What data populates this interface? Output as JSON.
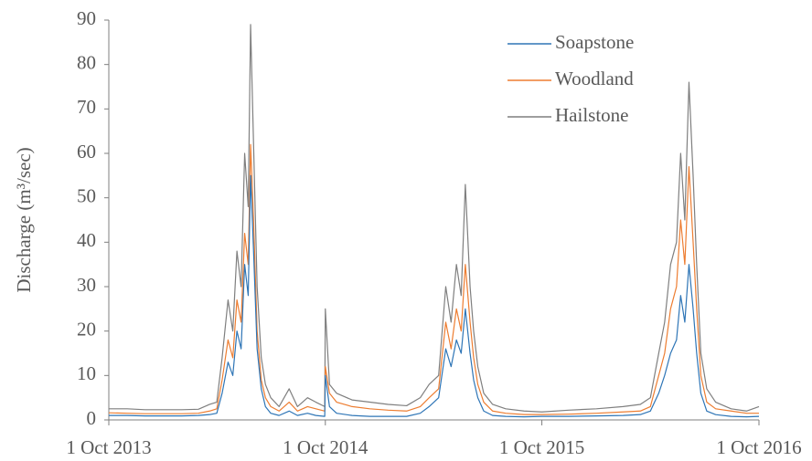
{
  "chart_data": {
    "type": "line",
    "y_label": "Discharge (m³/sec)",
    "x": [
      "2013-10-01",
      "2013-11-01",
      "2013-12-01",
      "2014-01-01",
      "2014-02-01",
      "2014-03-01",
      "2014-03-20",
      "2014-04-01",
      "2014-04-10",
      "2014-04-20",
      "2014-04-28",
      "2014-05-05",
      "2014-05-12",
      "2014-05-18",
      "2014-05-24",
      "2014-05-28",
      "2014-06-02",
      "2014-06-08",
      "2014-06-15",
      "2014-06-22",
      "2014-07-01",
      "2014-07-15",
      "2014-08-01",
      "2014-08-15",
      "2014-09-01",
      "2014-09-15",
      "2014-09-30",
      "2014-10-01",
      "2014-10-08",
      "2014-10-20",
      "2014-11-15",
      "2014-12-15",
      "2015-01-15",
      "2015-02-15",
      "2015-03-10",
      "2015-03-25",
      "2015-04-10",
      "2015-04-22",
      "2015-05-01",
      "2015-05-10",
      "2015-05-18",
      "2015-05-25",
      "2015-06-02",
      "2015-06-08",
      "2015-06-15",
      "2015-06-25",
      "2015-07-10",
      "2015-08-01",
      "2015-09-01",
      "2015-10-01",
      "2015-11-15",
      "2016-01-01",
      "2016-02-15",
      "2016-03-15",
      "2016-04-01",
      "2016-04-15",
      "2016-04-25",
      "2016-05-05",
      "2016-05-15",
      "2016-05-22",
      "2016-05-29",
      "2016-06-05",
      "2016-06-12",
      "2016-06-18",
      "2016-06-25",
      "2016-07-05",
      "2016-07-20",
      "2016-08-15",
      "2016-09-10",
      "2016-10-01"
    ],
    "series": [
      {
        "name": "Soapstone",
        "color": "#2e75b6",
        "values": [
          1,
          1,
          0.9,
          0.9,
          0.9,
          1,
          1.2,
          1.5,
          6,
          13,
          10,
          20,
          16,
          35,
          28,
          55,
          38,
          16,
          7,
          3,
          1.5,
          1,
          2,
          1,
          1.5,
          1,
          0.8,
          10,
          3,
          1.5,
          1,
          0.8,
          0.8,
          0.8,
          1.5,
          3,
          5,
          16,
          12,
          18,
          15,
          25,
          15,
          9,
          5,
          2,
          1,
          0.8,
          0.7,
          0.8,
          0.8,
          0.9,
          1,
          1.2,
          2,
          6,
          10,
          15,
          18,
          28,
          22,
          35,
          25,
          15,
          6,
          2,
          1.2,
          0.8,
          0.7,
          0.8
        ]
      },
      {
        "name": "Woodland",
        "color": "#ed7d31",
        "values": [
          1.6,
          1.5,
          1.4,
          1.4,
          1.4,
          1.5,
          2,
          2.5,
          9,
          18,
          14,
          27,
          22,
          42,
          35,
          62,
          45,
          20,
          9,
          5,
          3,
          2,
          4,
          2,
          3,
          2.5,
          2,
          12,
          6,
          4,
          3,
          2.5,
          2.2,
          2,
          3,
          5,
          7,
          22,
          16,
          25,
          20,
          35,
          22,
          14,
          8,
          4,
          2,
          1.5,
          1.2,
          1.2,
          1.3,
          1.5,
          1.8,
          2,
          3,
          10,
          15,
          25,
          30,
          45,
          35,
          57,
          40,
          25,
          10,
          4,
          2.5,
          2,
          1.5,
          1.5
        ]
      },
      {
        "name": "Hailstone",
        "color": "#7f7f7f",
        "values": [
          2.5,
          2.5,
          2.3,
          2.3,
          2.3,
          2.4,
          3.5,
          4,
          14,
          27,
          20,
          38,
          30,
          60,
          48,
          89,
          62,
          30,
          14,
          8,
          5,
          3,
          7,
          3,
          5,
          4,
          3,
          25,
          8,
          6,
          4.5,
          4,
          3.5,
          3.2,
          5,
          8,
          10,
          30,
          22,
          35,
          28,
          53,
          30,
          20,
          12,
          6,
          3.5,
          2.5,
          2,
          1.8,
          2.2,
          2.5,
          3,
          3.5,
          5,
          15,
          22,
          35,
          40,
          60,
          45,
          76,
          55,
          35,
          15,
          7,
          4,
          2.5,
          2,
          3
        ]
      }
    ],
    "xlim": [
      "2013-10-01",
      "2016-10-01"
    ],
    "xticks": [
      {
        "value": "2013-10-01",
        "label": "1 Oct 2013"
      },
      {
        "value": "2014-10-01",
        "label": "1 Oct 2014"
      },
      {
        "value": "2015-10-01",
        "label": "1 Oct 2015"
      },
      {
        "value": "2016-10-01",
        "label": "1 Oct 2016"
      }
    ],
    "ylim": [
      0,
      90
    ],
    "yticks": [
      0,
      10,
      20,
      30,
      40,
      50,
      60,
      70,
      80,
      90
    ],
    "grid": false,
    "legend": "upper-right"
  }
}
